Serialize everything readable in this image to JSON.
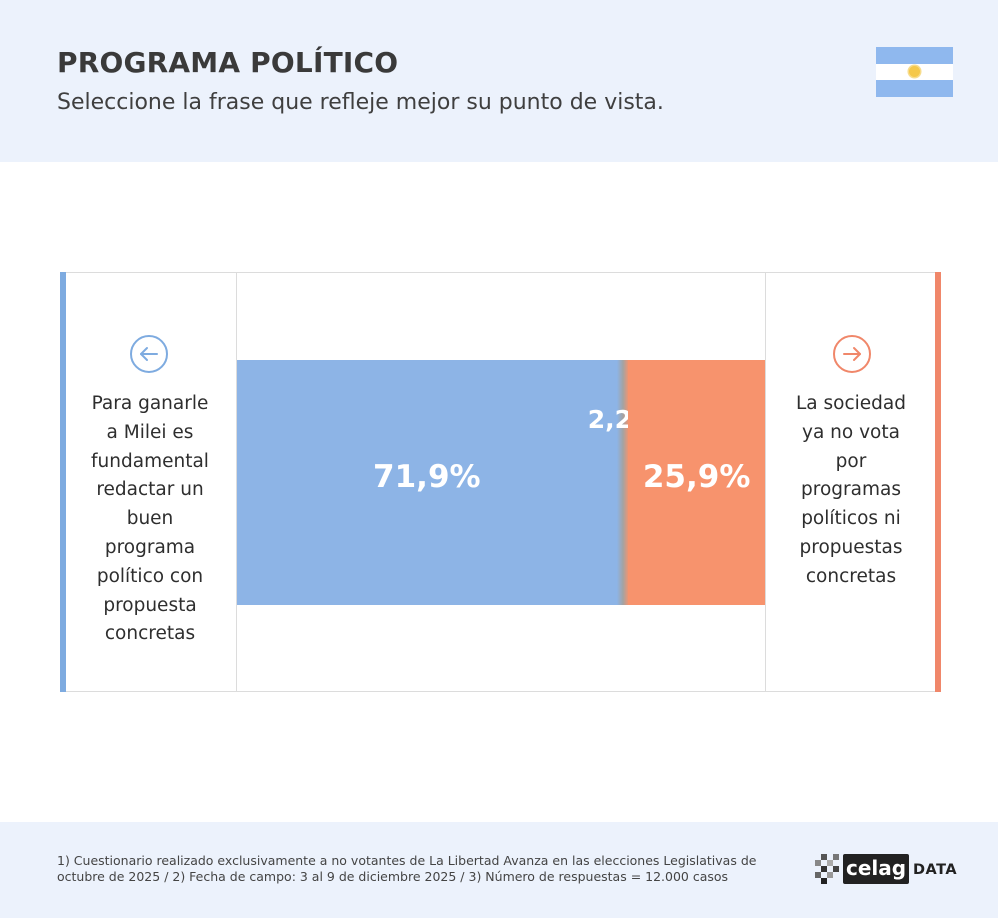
{
  "header": {
    "title": "PROGRAMA POLÍTICO",
    "subtitle": "Seleccione la frase que refleje mejor su punto de vista.",
    "flag_icon": "argentina-flag-icon"
  },
  "chart_data": {
    "type": "bar",
    "orientation": "horizontal-stacked",
    "categories": [
      "Para ganarle a Milei es fundamental redactar un buen programa político con propuesta concretas",
      "",
      "La sociedad ya no vota por programas políticos ni propuestas concretas"
    ],
    "values": [
      71.9,
      2.2,
      25.9
    ],
    "value_labels": [
      "71,9%",
      "2,2%",
      "25,9%"
    ],
    "colors": [
      "#8db4e6",
      "#a3a3a3",
      "#f7936d"
    ],
    "xlim": [
      0,
      100
    ],
    "grid": false,
    "legend": "none"
  },
  "left_statement": {
    "lines": [
      "Para ganarle",
      "a Milei es",
      "fundamental",
      "redactar un",
      "buen",
      "programa",
      "político con",
      "propuesta",
      "concretas"
    ],
    "icon": "arrow-left-circle-icon",
    "color": "#7eabe0"
  },
  "right_statement": {
    "lines": [
      "La sociedad",
      "ya no vota",
      "por",
      "programas",
      "políticos ni",
      "propuestas",
      "concretas"
    ],
    "icon": "arrow-right-circle-icon",
    "color": "#f0876a"
  },
  "footer": {
    "note_line1": "1) Cuestionario realizado exclusivamente a no votantes de La Libertad Avanza en las elecciones Legislativas de",
    "note_line2": "octubre de 2025  /  2) Fecha de campo: 3 al 9 de diciembre 2025 /  3) Número de respuestas = 12.000 casos",
    "logo_word": "celag",
    "logo_suffix": "DATA"
  }
}
